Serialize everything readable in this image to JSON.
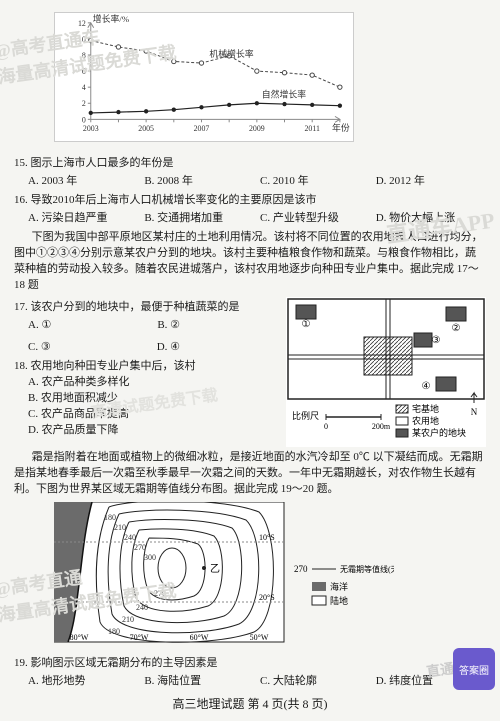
{
  "watermarks": {
    "wm1_line1": "@高考直通车",
    "wm1_line2": "海量高清试题免费下载",
    "wm2_line1": "@高考直通",
    "wm2_line2": "海量高清试题免费下载",
    "wm3": "直通车APP",
    "wm4": "高清试题免费下载",
    "wm5": "直通车APP",
    "badge": "答案圈"
  },
  "chart1": {
    "y_axis_label": "增长率/%",
    "x_axis_label": "年份",
    "series1_label": "机械增长率",
    "series2_label": "自然增长率",
    "x_ticks": [
      "2003",
      "",
      "2005",
      "",
      "2007",
      "",
      "2009",
      "",
      "2011",
      ""
    ],
    "y_ticks": [
      0,
      2,
      4,
      6,
      8,
      10,
      12
    ],
    "series_mech": [
      9.8,
      9.0,
      8.5,
      7.2,
      7.0,
      7.9,
      6.0,
      5.8,
      5.5,
      4.0
    ],
    "series_nat": [
      0.8,
      0.9,
      1.0,
      1.2,
      1.5,
      1.8,
      2.0,
      1.9,
      1.8,
      1.7
    ],
    "mech_color": "#444444",
    "nat_color": "#222222",
    "grid_color": "#888888",
    "background": "#ffffff"
  },
  "q15": {
    "stem": "15. 图示上海市人口最多的年份是",
    "A": "A. 2003 年",
    "B": "B. 2008 年",
    "C": "C. 2010 年",
    "D": "D. 2012 年"
  },
  "q16": {
    "stem": "16. 导致2010年后上海市人口机械增长率变化的主要原因是该市",
    "A": "A. 污染日趋严重",
    "B": "B. 交通拥堵加重",
    "C": "C. 产业转型升级",
    "D": "D. 物价大幅上涨"
  },
  "passage2": "下图为我国中部平原地区某村庄的土地利用情况。该村将不同位置的农用地按人口进行均分，图中①②③④分别示意某农户分到的地块。该村主要种植粮食作物和蔬菜。与粮食作物相比，蔬菜种植的劳动投入较多。随着农民进城落户，该村农用地逐步向种田专业户集中。据此完成 17～18 题",
  "q17": {
    "stem": "17. 该农户分到的地块中，最便于种植蔬菜的是",
    "A": "A. ①",
    "B": "B. ②",
    "C": "C. ③",
    "D": "D. ④"
  },
  "q18": {
    "stem": "18. 农用地向种田专业户集中后，该村",
    "A": "A. 农产品种类多样化",
    "B": "B. 农用地面积减少",
    "C": "C. 农产品商品率提高",
    "D": "D. 农产品质量下降"
  },
  "landmap": {
    "legend": {
      "residential": "宅基地",
      "farmland": "农用地",
      "plot": "某农户的地块"
    },
    "scale_label": "比例尺",
    "scale_values": [
      "0",
      "200m"
    ],
    "markers": [
      "①",
      "②",
      "③",
      "④"
    ]
  },
  "passage3": "霜是指附着在地面或植物上的微细冰粒，是接近地面的水汽冷却至 0℃ 以下凝结而成。无霜期是指某地春季最后一次霜至秋季最早一次霜之间的天数。一年中无霜期越长，对农作物生长越有利。下图为世界某区域无霜期等值线分布图。据此完成 19～20 题。",
  "contourmap": {
    "values": [
      "180",
      "210",
      "240",
      "270",
      "300",
      "270",
      "240",
      "210",
      "180"
    ],
    "lat_labels": [
      "10°S",
      "20°S"
    ],
    "lon_labels": [
      "80°W",
      "70°W",
      "60°W",
      "50°W"
    ],
    "point": "乙",
    "legend_line": "无霜期等值线(天)",
    "legend_value": "270",
    "legend_sea": "海洋",
    "legend_land": "陆地",
    "sea_color": "#6b6b6b",
    "land_color": "#ffffff",
    "line_color": "#222222"
  },
  "q19": {
    "stem": "19. 影响图示区域无霜期分布的主导因素是",
    "A": "A. 地形地势",
    "B": "B. 海陆位置",
    "C": "C. 大陆轮廓",
    "D": "D. 纬度位置"
  },
  "footer": "高三地理试题  第 4 页(共 8 页)"
}
